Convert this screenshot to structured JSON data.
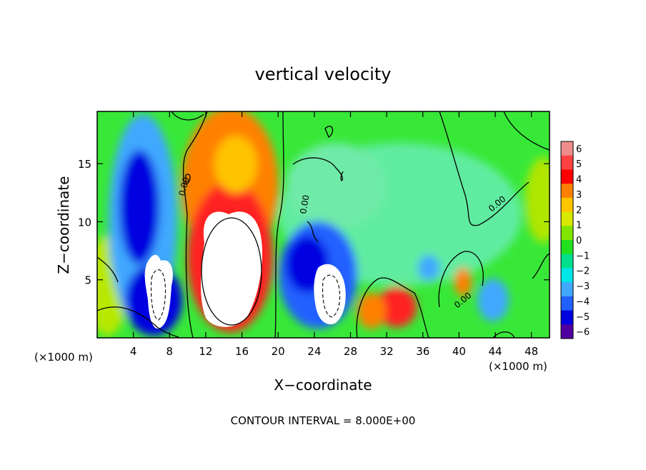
{
  "chart_data": {
    "type": "heatmap",
    "title": "vertical velocity",
    "xlabel": "X−coordinate",
    "ylabel": "Z−coordinate",
    "x_unit_label": "(×1000 m)",
    "z_unit_label": "(×1000 m)",
    "footer": "CONTOUR INTERVAL = 8.000E+00",
    "contour_label": "0.00",
    "xlim": [
      0,
      50
    ],
    "ylim": [
      0,
      19.5
    ],
    "x_ticks": [
      4,
      8,
      12,
      16,
      20,
      24,
      28,
      32,
      36,
      40,
      44,
      48
    ],
    "y_ticks": [
      5,
      10,
      15
    ],
    "colorbar": {
      "ticks": [
        "6",
        "5",
        "4",
        "3",
        "2",
        "1",
        "0",
        "−1",
        "−2",
        "−3",
        "−4",
        "−5",
        "−6"
      ],
      "colors": [
        "#ee8c8c",
        "#ff4040",
        "#ff0000",
        "#ff8000",
        "#ffc400",
        "#d8e800",
        "#80e600",
        "#20e020",
        "#00e08c",
        "#00e6e6",
        "#40a8ff",
        "#2060ff",
        "#0000e0",
        "#5000a0"
      ]
    },
    "features": [
      {
        "kind": "updraft",
        "x_center": 14.8,
        "z_center": 7.5,
        "peak": 6
      },
      {
        "kind": "downdraft",
        "x_center": 6.5,
        "z_center": 4.5,
        "peak": -6
      },
      {
        "kind": "downdraft",
        "x_center": 25.5,
        "z_center": 3.5,
        "peak": -6
      },
      {
        "kind": "downdraft",
        "x_center": 5.0,
        "z_center": 12.0,
        "peak": -5
      },
      {
        "kind": "updraft",
        "x_center": 33.0,
        "z_center": 3.0,
        "peak": 4
      },
      {
        "kind": "updraft",
        "x_center": 40.0,
        "z_center": 4.5,
        "peak": 3
      }
    ],
    "grid": false
  }
}
